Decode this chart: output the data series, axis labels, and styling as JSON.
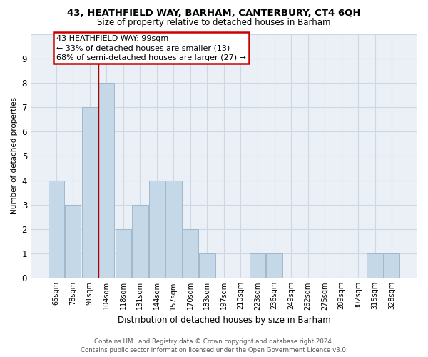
{
  "title1": "43, HEATHFIELD WAY, BARHAM, CANTERBURY, CT4 6QH",
  "title2": "Size of property relative to detached houses in Barham",
  "xlabel": "Distribution of detached houses by size in Barham",
  "ylabel": "Number of detached properties",
  "footer1": "Contains HM Land Registry data © Crown copyright and database right 2024.",
  "footer2": "Contains public sector information licensed under the Open Government Licence v3.0.",
  "categories": [
    "65sqm",
    "78sqm",
    "91sqm",
    "104sqm",
    "118sqm",
    "131sqm",
    "144sqm",
    "157sqm",
    "170sqm",
    "183sqm",
    "197sqm",
    "210sqm",
    "223sqm",
    "236sqm",
    "249sqm",
    "262sqm",
    "275sqm",
    "289sqm",
    "302sqm",
    "315sqm",
    "328sqm"
  ],
  "values": [
    4,
    3,
    7,
    8,
    2,
    3,
    4,
    4,
    2,
    1,
    0,
    0,
    1,
    1,
    0,
    0,
    0,
    0,
    0,
    1,
    1
  ],
  "bar_color": "#c5d8e8",
  "bar_edge_color": "#a0b8cc",
  "grid_color": "#cdd8e4",
  "background_color": "#eaf0f6",
  "ref_line_color": "#aa0000",
  "annotation_text": "43 HEATHFIELD WAY: 99sqm\n← 33% of detached houses are smaller (13)\n68% of semi-detached houses are larger (27) →",
  "annotation_box_color": "#ffffff",
  "annotation_box_edge_color": "#cc0000",
  "ylim": [
    0,
    10
  ],
  "yticks": [
    0,
    1,
    2,
    3,
    4,
    5,
    6,
    7,
    8,
    9,
    10
  ]
}
